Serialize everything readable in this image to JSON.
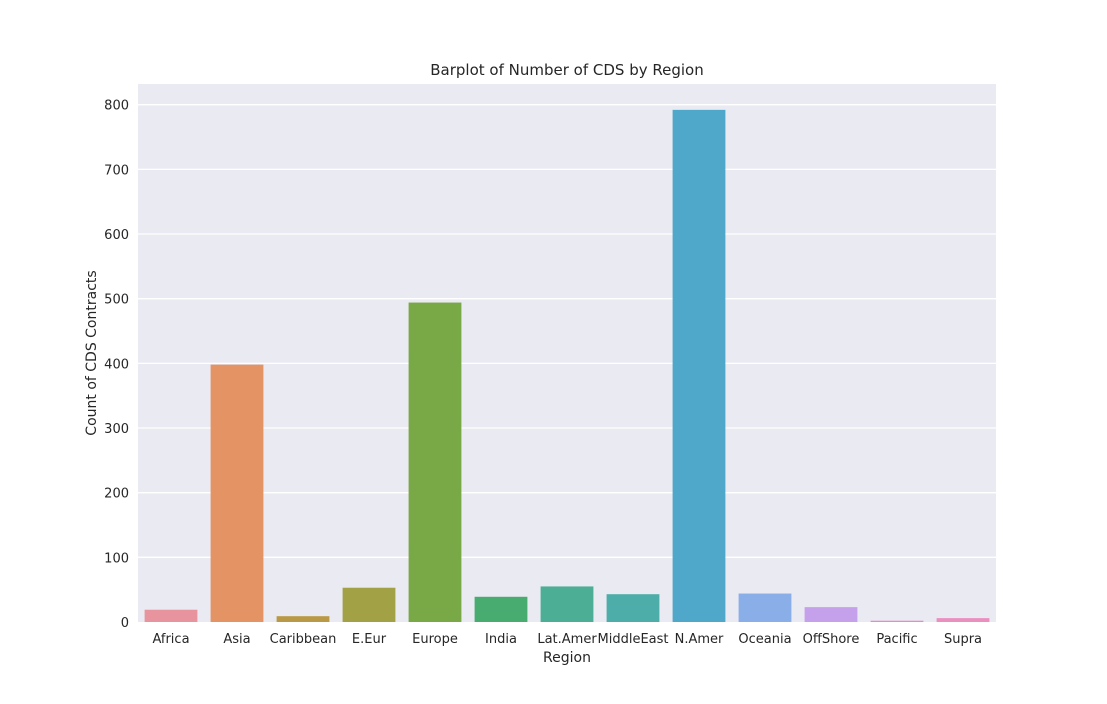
{
  "chart_data": {
    "type": "bar",
    "title": "Barplot of Number of CDS by Region",
    "xlabel": "Region",
    "ylabel": "Count of CDS Contracts",
    "categories": [
      "Africa",
      "Asia",
      "Caribbean",
      "E.Eur",
      "Europe",
      "India",
      "Lat.Amer",
      "MiddleEast",
      "N.Amer",
      "Oceania",
      "OffShore",
      "Pacific",
      "Supra"
    ],
    "values": [
      19,
      398,
      9,
      53,
      494,
      39,
      55,
      43,
      792,
      44,
      23,
      2,
      6
    ],
    "colors": [
      "#e8949e",
      "#e39364",
      "#b99945",
      "#a3a146",
      "#79a846",
      "#48ac71",
      "#4caf95",
      "#4dada9",
      "#4fa8c9",
      "#8aaee8",
      "#c5a1eb",
      "#e58bcb",
      "#ea8fc0"
    ],
    "yticks": [
      0,
      100,
      200,
      300,
      400,
      500,
      600,
      700,
      800
    ],
    "ylim": [
      0,
      832
    ],
    "grid": true,
    "background": "#eaeaf2"
  }
}
